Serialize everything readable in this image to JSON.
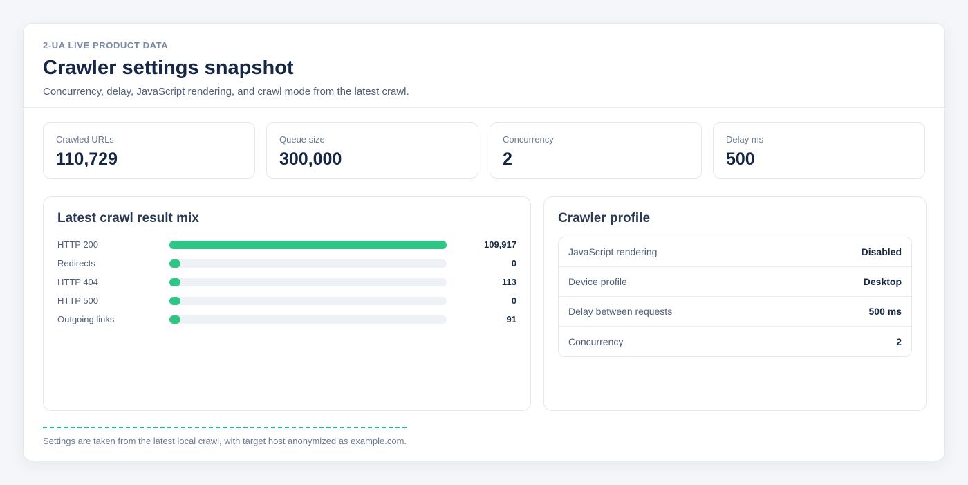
{
  "header": {
    "eyebrow": "2-UA LIVE PRODUCT DATA",
    "title": "Crawler settings snapshot",
    "subtitle": "Concurrency, delay, JavaScript rendering, and crawl mode from the latest crawl."
  },
  "stats": [
    {
      "label": "Crawled URLs",
      "value": "110,729"
    },
    {
      "label": "Queue size",
      "value": "300,000"
    },
    {
      "label": "Concurrency",
      "value": "2"
    },
    {
      "label": "Delay ms",
      "value": "500"
    }
  ],
  "result_mix": {
    "title": "Latest crawl result mix",
    "accent_color": "#2ec585",
    "rows": [
      {
        "label": "HTTP 200",
        "value": "109,917",
        "fraction": 1.0
      },
      {
        "label": "Redirects",
        "value": "0",
        "fraction": 0.0
      },
      {
        "label": "HTTP 404",
        "value": "113",
        "fraction": 0.001
      },
      {
        "label": "HTTP 500",
        "value": "0",
        "fraction": 0.0
      },
      {
        "label": "Outgoing links",
        "value": "91",
        "fraction": 0.0008
      }
    ]
  },
  "profile": {
    "title": "Crawler profile",
    "rows": [
      {
        "key": "JavaScript rendering",
        "value": "Disabled"
      },
      {
        "key": "Device profile",
        "value": "Desktop"
      },
      {
        "key": "Delay between requests",
        "value": "500 ms"
      },
      {
        "key": "Concurrency",
        "value": "2"
      }
    ]
  },
  "footer": {
    "note": "Settings are taken from the latest local crawl, with target host anonymized as example.com."
  }
}
